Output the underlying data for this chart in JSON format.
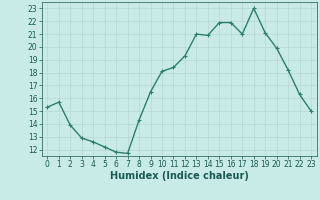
{
  "x": [
    0,
    1,
    2,
    3,
    4,
    5,
    6,
    7,
    8,
    9,
    10,
    11,
    12,
    13,
    14,
    15,
    16,
    17,
    18,
    19,
    20,
    21,
    22,
    23
  ],
  "y": [
    15.3,
    15.7,
    13.9,
    12.9,
    12.6,
    12.2,
    11.8,
    11.7,
    14.3,
    16.5,
    18.1,
    18.4,
    19.3,
    21.0,
    20.9,
    21.9,
    21.9,
    21.0,
    23.0,
    21.1,
    19.9,
    18.2,
    16.3,
    15.0
  ],
  "line_color": "#2e7d6e",
  "marker": "+",
  "marker_size": 3.5,
  "bg_color": "#c8ebe8",
  "grid_color": "#b8d8d4",
  "xlabel": "Humidex (Indice chaleur)",
  "xlim": [
    -0.5,
    23.5
  ],
  "ylim": [
    11.5,
    23.5
  ],
  "yticks": [
    12,
    13,
    14,
    15,
    16,
    17,
    18,
    19,
    20,
    21,
    22,
    23
  ],
  "xticks": [
    0,
    1,
    2,
    3,
    4,
    5,
    6,
    7,
    8,
    9,
    10,
    11,
    12,
    13,
    14,
    15,
    16,
    17,
    18,
    19,
    20,
    21,
    22,
    23
  ],
  "font_color": "#1a5a52",
  "line_width": 1.0,
  "tick_fontsize": 5.5,
  "xlabel_fontsize": 7.0,
  "marker_edge_width": 0.8
}
